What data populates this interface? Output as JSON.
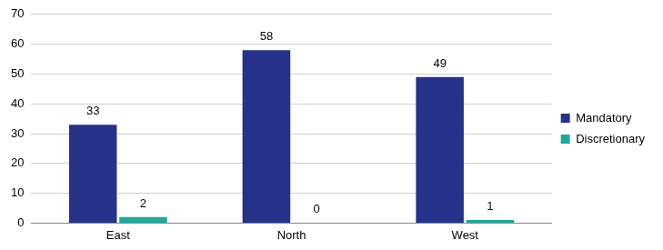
{
  "chart_data": {
    "type": "bar",
    "categories": [
      "East",
      "North",
      "West"
    ],
    "series": [
      {
        "name": "Mandatory",
        "color": "#26318a",
        "values": [
          33,
          58,
          49
        ]
      },
      {
        "name": "Discretionary",
        "color": "#1fa89b",
        "values": [
          2,
          0,
          1
        ]
      }
    ],
    "ylim": [
      0,
      70
    ],
    "yticks": [
      0,
      10,
      20,
      30,
      40,
      50,
      60,
      70
    ],
    "grid": true,
    "legend": "right",
    "data_labels": true
  }
}
